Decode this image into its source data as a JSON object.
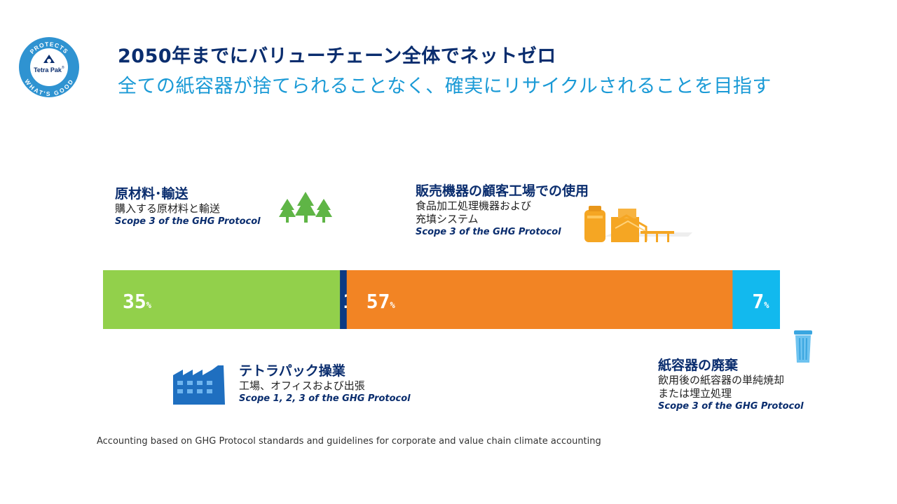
{
  "header": {
    "title": "2050年までにバリューチェーン全体でネットゼロ",
    "subtitle": "全ての紙容器が捨てられることなく、確実にリサイクルされることを目指す"
  },
  "logo": {
    "top_text": "PROTECTS",
    "bottom_text": "WHAT'S GOOD",
    "brand": "Tetra Pak",
    "registered": "®"
  },
  "captions": {
    "raw_materials": {
      "title": "原材料･輸送",
      "desc1": "購入する原材料と輸送",
      "scope": "Scope 3 of the GHG Protocol"
    },
    "customer": {
      "title": "販売機器の顧客工場での使用",
      "desc1": "食品加工処理機器および",
      "desc2": "充填システム",
      "scope": "Scope 3 of the GHG Protocol"
    },
    "operations": {
      "title": "テトラパック操業",
      "desc1": "工場、オフィスおよび出張",
      "scope": "Scope 1, 2, 3 of the GHG Protocol"
    },
    "disposal": {
      "title": "紙容器の廃棄",
      "desc1": "飲用後の紙容器の単純焼却",
      "desc2": "または埋立処理",
      "scope": "Scope 3 of the GHG Protocol"
    }
  },
  "chart_data": {
    "type": "bar",
    "orientation": "horizontal-stacked",
    "unit": "%",
    "categories": [
      "原材料･輸送",
      "テトラパック操業",
      "販売機器の顧客工場での使用",
      "紙容器の廃棄"
    ],
    "values": [
      35,
      1,
      57,
      7
    ],
    "labels": [
      "35",
      "1",
      "57",
      "7"
    ],
    "colors": [
      "#92d04b",
      "#0b3a83",
      "#f28424",
      "#12b9ee"
    ]
  },
  "footnote": "Accounting based on GHG Protocol standards and guidelines for corporate and value chain climate accounting"
}
